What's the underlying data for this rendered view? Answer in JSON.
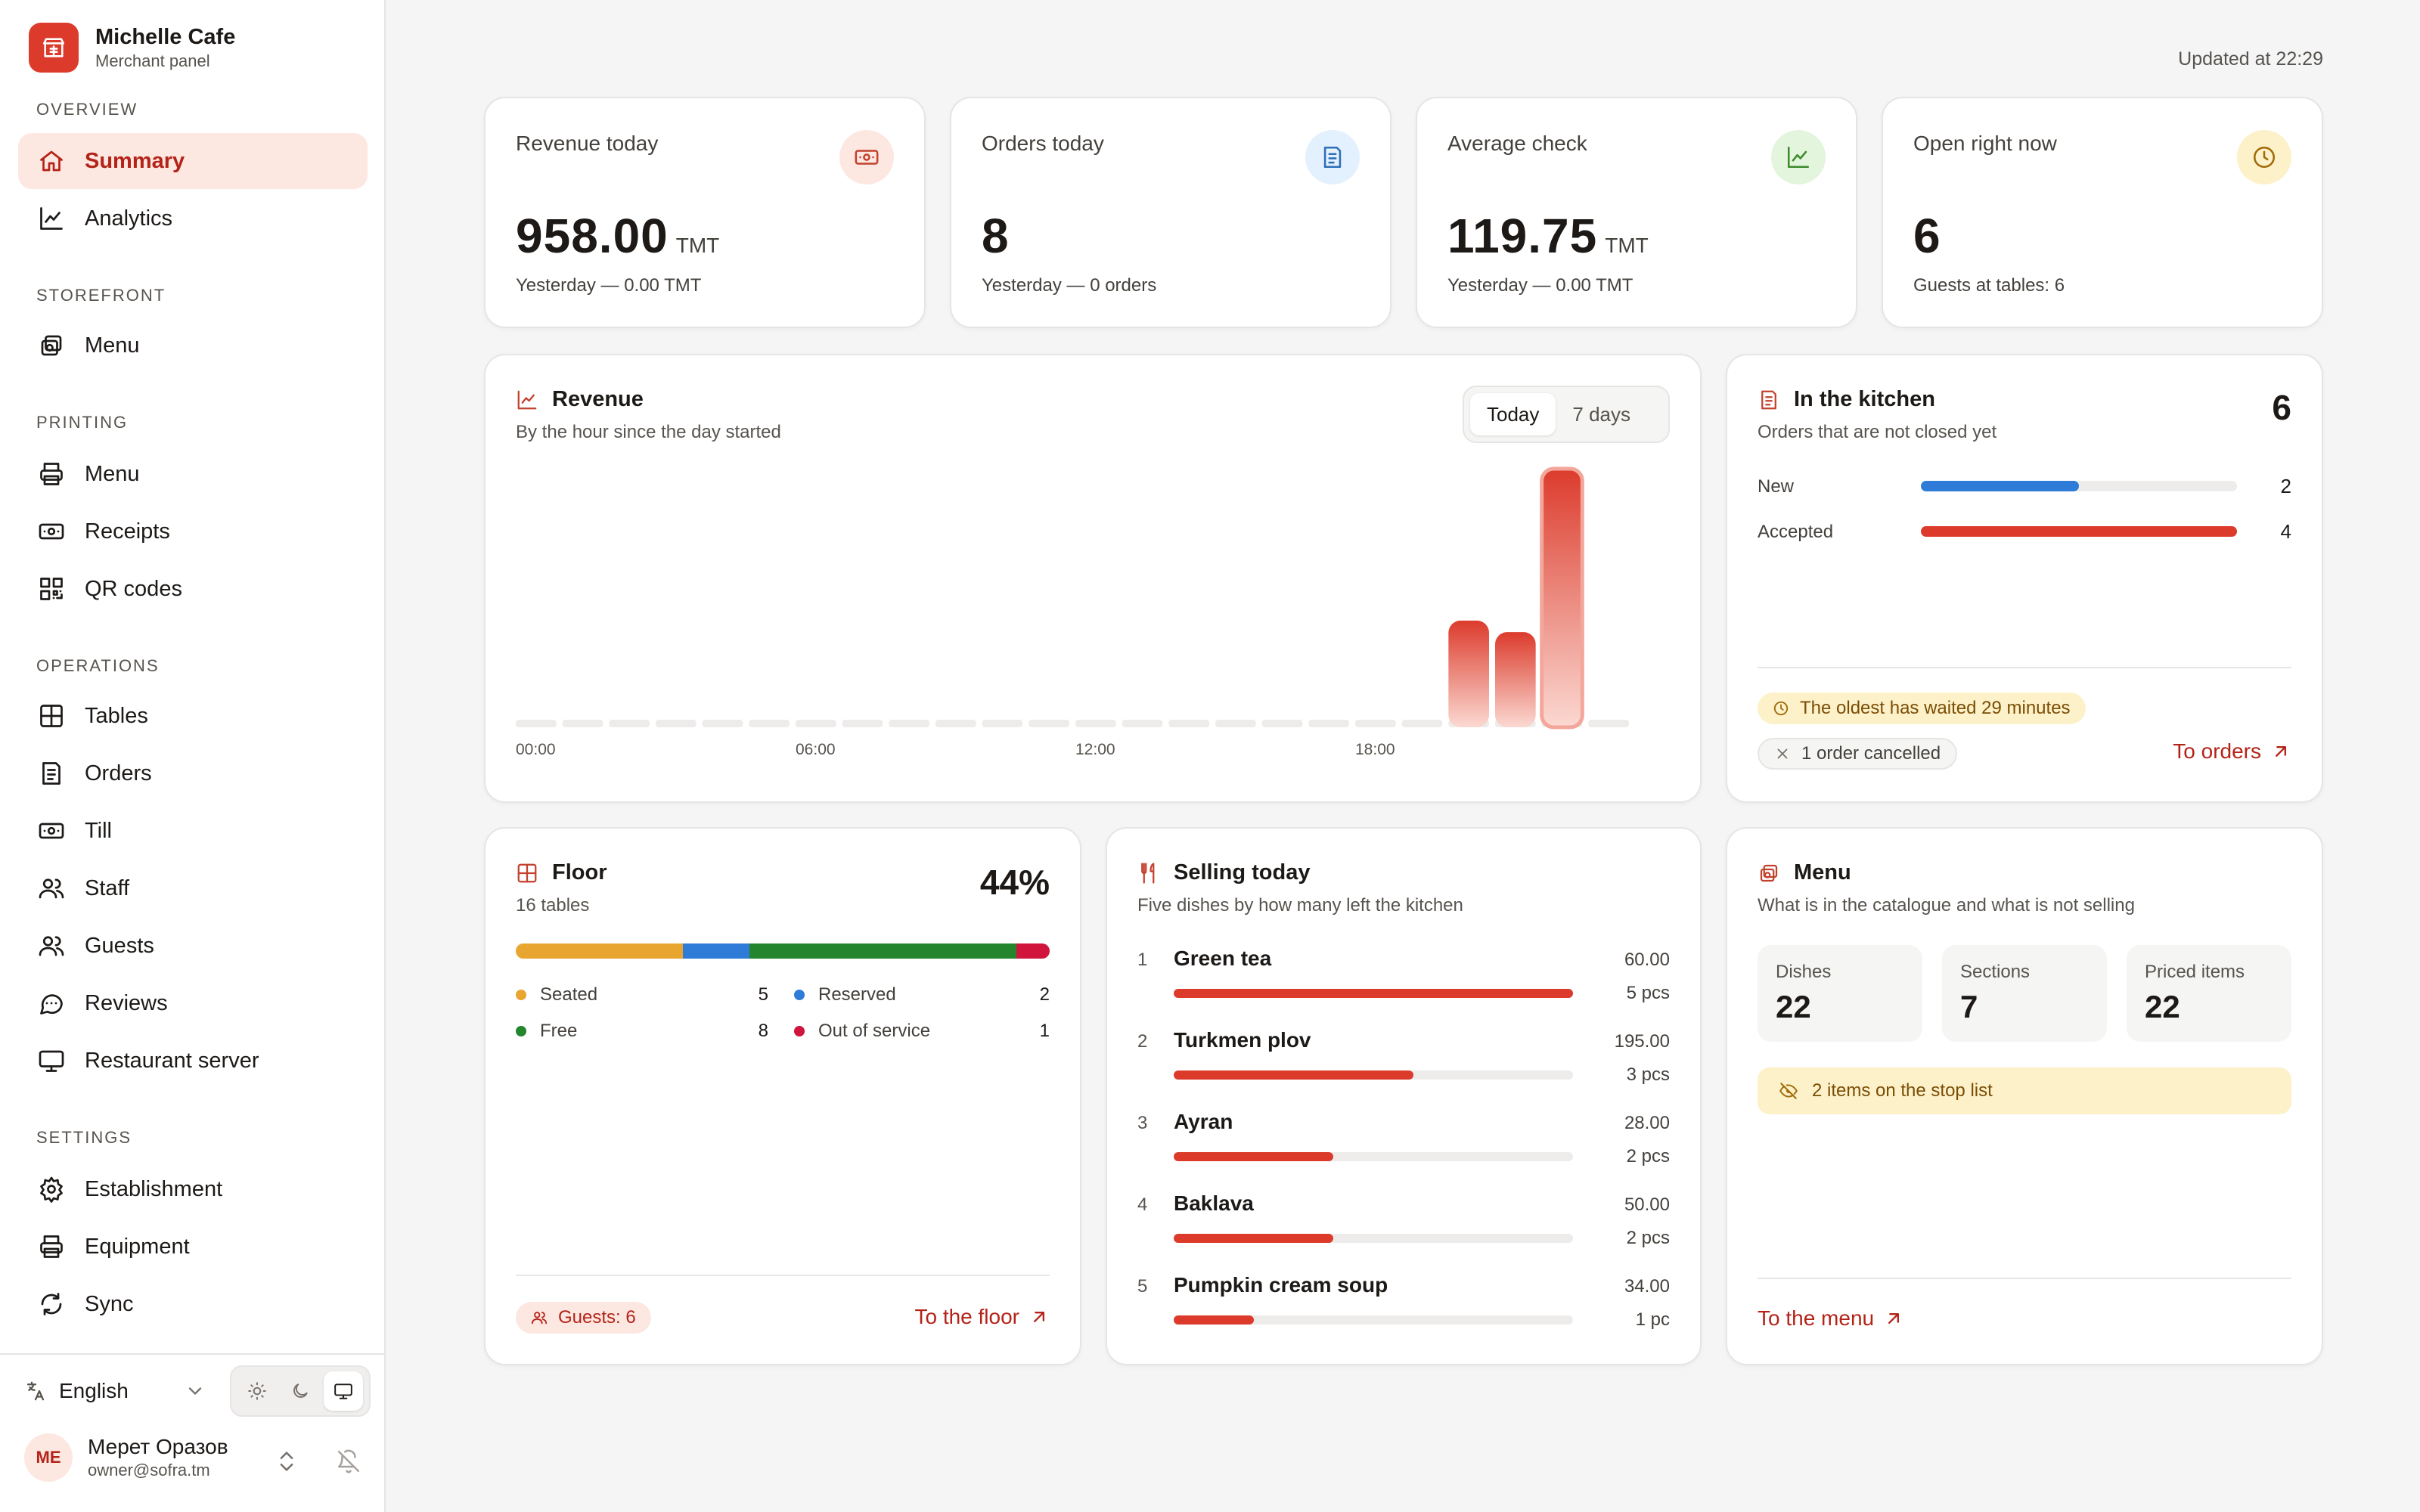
{
  "brand": {
    "name": "Michelle Cafe",
    "subtitle": "Merchant panel"
  },
  "sidebar": {
    "sections": [
      {
        "label": "OVERVIEW"
      },
      {
        "label": "STOREFRONT"
      },
      {
        "label": "PRINTING"
      },
      {
        "label": "OPERATIONS"
      },
      {
        "label": "SETTINGS"
      }
    ],
    "items": [
      {
        "label": "Summary",
        "icon": "home-icon",
        "active": true
      },
      {
        "label": "Analytics",
        "icon": "chart-line-icon"
      },
      {
        "label": "Menu",
        "icon": "dishes-icon"
      },
      {
        "label": "Menu",
        "icon": "printer-icon"
      },
      {
        "label": "Receipts",
        "icon": "banknote-icon"
      },
      {
        "label": "QR codes",
        "icon": "qr-code-icon"
      },
      {
        "label": "Tables",
        "icon": "table-grid-icon"
      },
      {
        "label": "Orders",
        "icon": "receipt-icon"
      },
      {
        "label": "Till",
        "icon": "cash-icon"
      },
      {
        "label": "Staff",
        "icon": "users-icon"
      },
      {
        "label": "Guests",
        "icon": "guests-icon"
      },
      {
        "label": "Reviews",
        "icon": "message-icon"
      },
      {
        "label": "Restaurant server",
        "icon": "monitor-icon"
      },
      {
        "label": "Establishment",
        "icon": "gear-icon"
      },
      {
        "label": "Equipment",
        "icon": "printer-icon"
      },
      {
        "label": "Sync",
        "icon": "sync-icon"
      }
    ],
    "language": "English",
    "user": {
      "initials": "ME",
      "name": "Мерет Оразов",
      "email": "owner@sofra.tm"
    }
  },
  "updated": "Updated at 22:29",
  "kpis": [
    {
      "label": "Revenue today",
      "value": "958.00",
      "unit": "TMT",
      "sub": "Yesterday — 0.00 TMT",
      "icon": "banknote-icon",
      "icon_bg": "#fde7e1",
      "icon_color": "#c2412d"
    },
    {
      "label": "Orders today",
      "value": "8",
      "unit": "",
      "sub": "Yesterday — 0 orders",
      "icon": "receipt-icon",
      "icon_bg": "#e3f0fd",
      "icon_color": "#2f6fb8"
    },
    {
      "label": "Average check",
      "value": "119.75",
      "unit": "TMT",
      "sub": "Yesterday — 0.00 TMT",
      "icon": "trending-up-icon",
      "icon_bg": "#e3f5dc",
      "icon_color": "#3d8a2c"
    },
    {
      "label": "Open right now",
      "value": "6",
      "unit": "",
      "sub": "Guests at tables: 6",
      "icon": "clock-icon",
      "icon_bg": "#fdf1c9",
      "icon_color": "#a06a0a"
    }
  ],
  "revenue": {
    "title": "Revenue",
    "subtitle": "By the hour since the day started",
    "tabs": [
      "Today",
      "7 days"
    ],
    "active_tab": "Today"
  },
  "chart_data": {
    "type": "bar",
    "title": "Revenue",
    "categories": [
      "00",
      "01",
      "02",
      "03",
      "04",
      "05",
      "06",
      "07",
      "08",
      "09",
      "10",
      "11",
      "12",
      "13",
      "14",
      "15",
      "16",
      "17",
      "18",
      "19",
      "20",
      "21",
      "22",
      "23"
    ],
    "tick_labels": [
      "00:00",
      "06:00",
      "12:00",
      "18:00"
    ],
    "values": [
      0,
      0,
      0,
      0,
      0,
      0,
      0,
      0,
      0,
      0,
      0,
      0,
      0,
      0,
      0,
      0,
      0,
      0,
      0,
      0,
      222,
      198,
      538,
      0
    ],
    "highlight_index": 22,
    "ylim": [
      0,
      538
    ]
  },
  "kitchen": {
    "title": "In the kitchen",
    "subtitle": "Orders that are not closed yet",
    "total": "6",
    "rows": [
      {
        "label": "New",
        "value": "2",
        "fraction": 0.5,
        "color": "#2f7bd8"
      },
      {
        "label": "Accepted",
        "value": "4",
        "fraction": 1.0,
        "color": "#dc3b2c"
      }
    ],
    "oldest": "The oldest has waited 29 minutes",
    "cancelled": "1 order cancelled",
    "link": "To orders"
  },
  "floor": {
    "title": "Floor",
    "subtitle": "16 tables",
    "percent": "44%",
    "segments": [
      {
        "label": "Seated",
        "value": "5",
        "color": "#e8a530",
        "fraction": 0.3125
      },
      {
        "label": "Reserved",
        "value": "2",
        "color": "#2f7bd8",
        "fraction": 0.125
      },
      {
        "label": "Free",
        "value": "8",
        "color": "#23862f",
        "fraction": 0.5
      },
      {
        "label": "Out of service",
        "value": "1",
        "color": "#d0143c",
        "fraction": 0.0625
      }
    ],
    "guests": "Guests: 6",
    "link": "To the floor"
  },
  "selling": {
    "title": "Selling today",
    "subtitle": "Five dishes by how many left the kitchen",
    "items": [
      {
        "rank": "1",
        "name": "Green tea",
        "amount": "60.00",
        "qty": "5 pcs",
        "fraction": 1.0
      },
      {
        "rank": "2",
        "name": "Turkmen plov",
        "amount": "195.00",
        "qty": "3 pcs",
        "fraction": 0.6
      },
      {
        "rank": "3",
        "name": "Ayran",
        "amount": "28.00",
        "qty": "2 pcs",
        "fraction": 0.4
      },
      {
        "rank": "4",
        "name": "Baklava",
        "amount": "50.00",
        "qty": "2 pcs",
        "fraction": 0.4
      },
      {
        "rank": "5",
        "name": "Pumpkin cream soup",
        "amount": "34.00",
        "qty": "1 pc",
        "fraction": 0.2
      }
    ]
  },
  "menu_card": {
    "title": "Menu",
    "subtitle": "What is in the catalogue and what is not selling",
    "stats": [
      {
        "label": "Dishes",
        "value": "22"
      },
      {
        "label": "Sections",
        "value": "7"
      },
      {
        "label": "Priced items",
        "value": "22"
      }
    ],
    "stoplist": "2 items on the stop list",
    "link": "To the menu"
  },
  "colors": {
    "accent": "#dc3b2c",
    "accent_text": "#b42318",
    "active_bg": "#fde7e1"
  }
}
